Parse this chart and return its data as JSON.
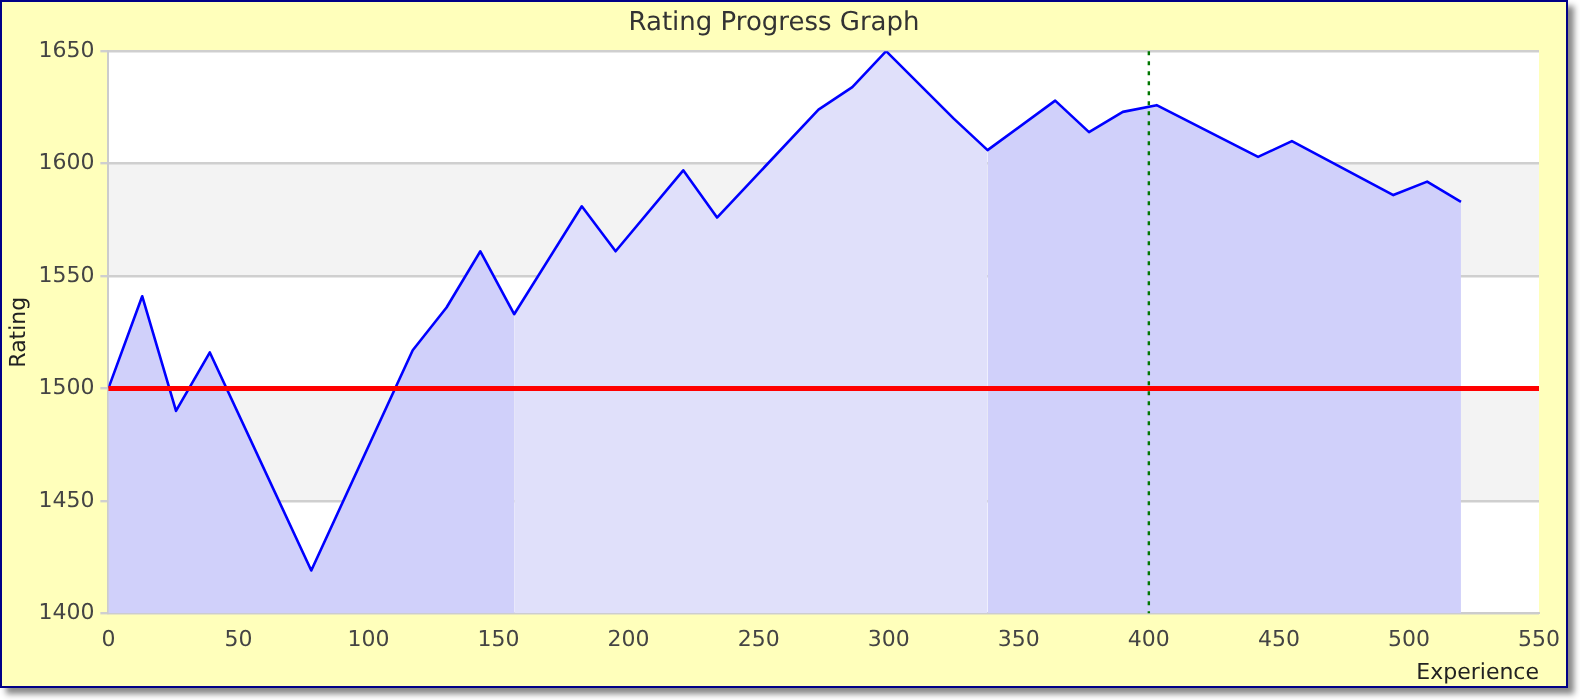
{
  "chart_data": {
    "type": "area",
    "title": "Rating Progress Graph",
    "xlabel": "Experience",
    "ylabel": "Rating",
    "xlim": [
      0,
      550
    ],
    "xticks": [
      0,
      50,
      100,
      150,
      200,
      250,
      300,
      350,
      400,
      450,
      500,
      550
    ],
    "ylim": [
      1400,
      1650
    ],
    "yticks": [
      1400,
      1450,
      1500,
      1550,
      1600,
      1650
    ],
    "grid": "y",
    "legend": false,
    "marker": "none",
    "series": [
      {
        "color": "#d0d0fa",
        "x": [
          0,
          13,
          26,
          39,
          78,
          117,
          130,
          143,
          156
        ],
        "values": [
          1500,
          1541,
          1490,
          1516,
          1419,
          1517,
          1536,
          1561,
          1533
        ]
      },
      {
        "color": "#e0e0fa",
        "x": [
          156,
          182,
          195,
          221,
          234,
          273,
          286,
          299,
          325,
          338
        ],
        "values": [
          1533,
          1581,
          1561,
          1597,
          1576,
          1624,
          1634,
          1650,
          1620,
          1606
        ]
      },
      {
        "color": "#d0d0fa",
        "x": [
          338,
          364,
          377,
          390,
          403,
          442,
          455,
          494,
          507,
          520
        ],
        "values": [
          1606,
          1628,
          1614,
          1623,
          1626,
          1603,
          1610,
          1586,
          1592,
          1583
        ]
      },
      {
        "type": "line",
        "color": "#0000ff",
        "x": [
          0,
          13,
          26,
          39,
          78,
          117,
          130,
          143,
          156,
          182,
          195,
          221,
          234,
          273,
          286,
          299,
          325,
          338,
          364,
          377,
          390,
          403,
          442,
          455,
          494,
          507,
          520
        ],
        "values": [
          1500,
          1541,
          1490,
          1516,
          1419,
          1517,
          1536,
          1561,
          1533,
          1581,
          1561,
          1597,
          1576,
          1624,
          1634,
          1650,
          1620,
          1606,
          1628,
          1614,
          1623,
          1626,
          1603,
          1610,
          1586,
          1592,
          1583
        ]
      }
    ],
    "ref_lines": [
      {
        "axis": "y",
        "value": 1500,
        "color": "#ff0000",
        "line_style": "solid"
      },
      {
        "axis": "x",
        "value": 400,
        "color": "#007700",
        "line_style": "dotted"
      }
    ]
  }
}
